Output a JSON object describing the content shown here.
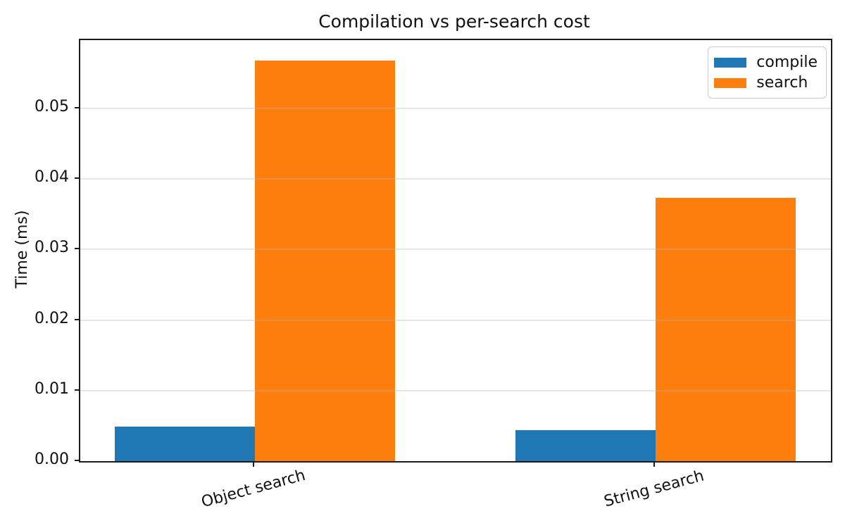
{
  "figure": {
    "background": "#ffffff",
    "text_color": "#111111",
    "spine_color": "#1c1c1c",
    "grid_color": "#b0b0b0"
  },
  "chart_data": {
    "type": "bar",
    "title": "Compilation vs per-search cost",
    "xlabel": "",
    "ylabel": "Time (ms)",
    "categories": [
      "Object search",
      "String search"
    ],
    "series": [
      {
        "name": "compile",
        "color": "#1f77b4",
        "values": [
          0.0049,
          0.0044
        ]
      },
      {
        "name": "search",
        "color": "#ff7f0e",
        "values": [
          0.0568,
          0.0373
        ]
      }
    ],
    "yticks": {
      "values": [
        0,
        0.01,
        0.02,
        0.03,
        0.04,
        0.05
      ],
      "labels": [
        "0.00",
        "0.01",
        "0.02",
        "0.03",
        "0.04",
        "0.05"
      ]
    },
    "ylim": [
      0,
      0.0597
    ],
    "xlim": [
      -0.436,
      1.438
    ],
    "bar_width": 0.35,
    "grid": "horizontal",
    "grid_above_bars": true,
    "xtick_rotation_deg": 15,
    "legend": {
      "position": "upper right",
      "entries": [
        "compile",
        "search"
      ]
    }
  }
}
